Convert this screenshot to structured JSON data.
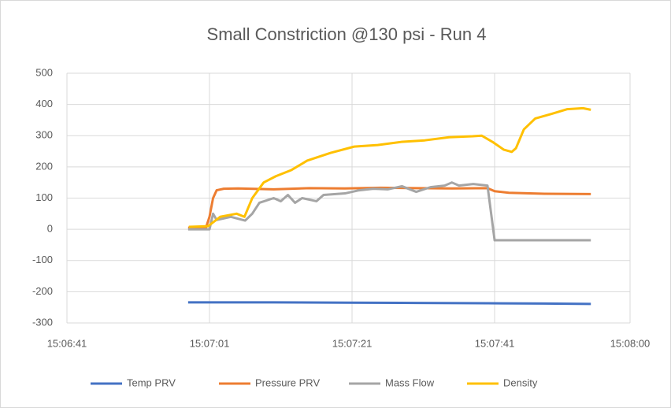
{
  "chart_data": {
    "type": "line",
    "title": "Small Constriction @130 psi - Run 4",
    "xlim": [
      54401,
      54480
    ],
    "xticks": [
      {
        "value": 54401,
        "label": "15:06:41"
      },
      {
        "value": 54421,
        "label": "15:07:01"
      },
      {
        "value": 54441,
        "label": "15:07:21"
      },
      {
        "value": 54461,
        "label": "15:07:41"
      },
      {
        "value": 54480,
        "label": "15:08:00"
      }
    ],
    "ylim": [
      -300,
      500
    ],
    "yticks": [
      -300,
      -200,
      -100,
      0,
      100,
      200,
      300,
      400,
      500
    ],
    "grid": true,
    "legend": "bottom",
    "series": [
      {
        "name": "Temp PRV",
        "color": "#4472c4",
        "x": [
          54418,
          54430,
          54440,
          54450,
          54460,
          54468,
          54474.5
        ],
        "values": [
          -234,
          -234,
          -235,
          -236,
          -237,
          -238,
          -239
        ]
      },
      {
        "name": "Pressure PRV",
        "color": "#ed7d31",
        "x": [
          54418,
          54420.5,
          54421,
          54421.5,
          54422,
          54423,
          54425,
          54430,
          54435,
          54440,
          54445,
          54450,
          54455,
          54460,
          54461,
          54463,
          54468,
          54474.5
        ],
        "values": [
          5,
          5,
          40,
          100,
          125,
          130,
          131,
          128,
          132,
          131,
          133,
          132,
          131,
          132,
          122,
          117,
          114,
          113
        ]
      },
      {
        "name": "Mass Flow",
        "color": "#a5a5a5",
        "x": [
          54418,
          54421,
          54421.5,
          54422,
          54424,
          54426,
          54427,
          54428,
          54430,
          54431,
          54432,
          54433,
          54434,
          54436,
          54437,
          54440,
          54442,
          54444,
          54446,
          54448,
          54450,
          54452,
          54454,
          54455,
          54456,
          54458,
          54460,
          54461,
          54468,
          54474.5
        ],
        "values": [
          0,
          0,
          50,
          30,
          40,
          28,
          50,
          85,
          100,
          90,
          110,
          85,
          100,
          90,
          110,
          115,
          125,
          130,
          128,
          138,
          120,
          135,
          140,
          150,
          140,
          145,
          140,
          -35,
          -35,
          -35
        ]
      },
      {
        "name": "Density",
        "color": "#ffc000",
        "x": [
          54418.1,
          54420.8,
          54422.5,
          54424.8,
          54425.9,
          54427,
          54428.6,
          54430.3,
          54432.5,
          54434.7,
          54438,
          54441.3,
          54444.6,
          54447.9,
          54451.2,
          54454.6,
          54457.9,
          54459.2,
          54460.7,
          54462.3,
          54463.4,
          54464,
          54465.1,
          54466.7,
          54469,
          54471.2,
          54473.4,
          54474.5
        ],
        "values": [
          8,
          10,
          40,
          50,
          40,
          100,
          150,
          170,
          190,
          220,
          245,
          265,
          270,
          280,
          285,
          295,
          298,
          300,
          280,
          255,
          248,
          260,
          320,
          355,
          370,
          385,
          388,
          383
        ]
      }
    ]
  }
}
